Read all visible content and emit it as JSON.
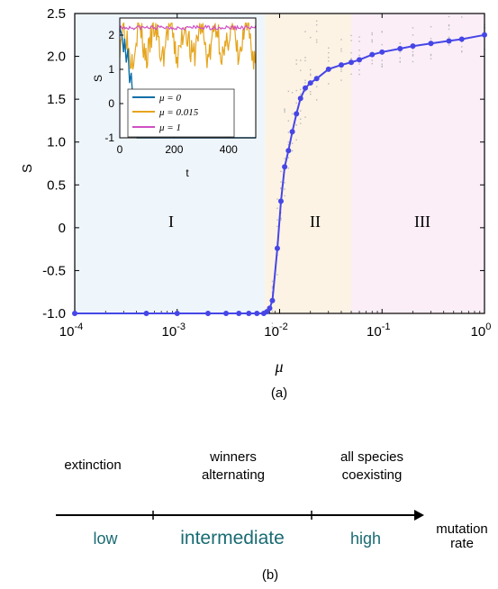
{
  "chart_data": [
    {
      "type": "line",
      "panel": "(a)",
      "xscale": "log",
      "xlim": [
        0.0001,
        1
      ],
      "ylim": [
        -1.0,
        2.5
      ],
      "xlabel": "μ",
      "ylabel": "S",
      "xticks": [
        "10^-4",
        "10^-3",
        "10^-2",
        "10^-1",
        "10^0"
      ],
      "yticks": [
        "-1.0",
        "-0.5",
        "0",
        "0.5",
        "1.0",
        "1.5",
        "2.0",
        "2.5"
      ],
      "regions": [
        {
          "label": "I",
          "from": 0.0001,
          "to": 0.0072,
          "color": "#eef5fb"
        },
        {
          "label": "II",
          "from": 0.0072,
          "to": 0.05,
          "color": "#fdf3e4"
        },
        {
          "label": "III",
          "from": 0.05,
          "to": 1,
          "color": "#fbeef7"
        }
      ],
      "series": [
        {
          "color": "#4646e6",
          "points": [
            [
              0.0001,
              -1.0
            ],
            [
              0.0005,
              -1.0
            ],
            [
              0.001,
              -1.0
            ],
            [
              0.002,
              -1.0
            ],
            [
              0.003,
              -1.0
            ],
            [
              0.004,
              -1.0
            ],
            [
              0.005,
              -1.0
            ],
            [
              0.006,
              -1.0
            ],
            [
              0.007,
              -1.0
            ],
            [
              0.0075,
              -0.98
            ],
            [
              0.008,
              -0.94
            ],
            [
              0.0085,
              -0.85
            ],
            [
              0.0095,
              -0.24
            ],
            [
              0.0103,
              0.31
            ],
            [
              0.0112,
              0.71
            ],
            [
              0.0122,
              0.9
            ],
            [
              0.0133,
              1.12
            ],
            [
              0.0146,
              1.33
            ],
            [
              0.016,
              1.51
            ],
            [
              0.0178,
              1.63
            ],
            [
              0.02,
              1.69
            ],
            [
              0.023,
              1.74
            ],
            [
              0.03,
              1.85
            ],
            [
              0.04,
              1.9
            ],
            [
              0.05,
              1.93
            ],
            [
              0.06,
              1.96
            ],
            [
              0.08,
              2.02
            ],
            [
              0.1,
              2.05
            ],
            [
              0.15,
              2.09
            ],
            [
              0.2,
              2.12
            ],
            [
              0.3,
              2.15
            ],
            [
              0.45,
              2.18
            ],
            [
              0.6,
              2.2
            ],
            [
              1.0,
              2.25
            ]
          ]
        }
      ],
      "inset": {
        "type": "line",
        "xlabel": "t",
        "ylabel": "S",
        "xlim": [
          0,
          500
        ],
        "ylim": [
          -1,
          2.5
        ],
        "xticks": [
          "0",
          "200",
          "400"
        ],
        "yticks": [
          "-1",
          "0",
          "1",
          "2"
        ],
        "legend_position": "bottom-right",
        "series": [
          {
            "name": "μ = 0",
            "color": "#0e6fa8"
          },
          {
            "name": "μ = 0.015",
            "color": "#e5a51e"
          },
          {
            "name": "μ = 1",
            "color": "#cf4fc3"
          }
        ]
      }
    },
    {
      "type": "diagram",
      "panel": "(b)",
      "axis_label": "mutation rate",
      "segments": [
        {
          "rate": "low",
          "regime": "extinction"
        },
        {
          "rate": "intermediate",
          "regime": "winners alternating"
        },
        {
          "rate": "high",
          "regime": "all species coexisting"
        }
      ]
    }
  ],
  "text": {
    "panel_a_caption": "(a)",
    "panel_b_caption": "(b)",
    "x_axis_label": "μ",
    "y_axis_label": "S",
    "inset_x_label": "t",
    "inset_y_label": "S",
    "region_1": "I",
    "region_2": "II",
    "region_3": "III",
    "legend_1": "μ = 0",
    "legend_2": "μ = 0.015",
    "legend_3": "μ = 1",
    "regime_low_line1": "extinction",
    "regime_mid_line1": "winners",
    "regime_mid_line2": "alternating",
    "regime_high_line1": "all species",
    "regime_high_line2": "coexisting",
    "rate_low": "low",
    "rate_mid": "intermediate",
    "rate_high": "high",
    "axis_b_line1": "mutation",
    "axis_b_line2": "rate"
  }
}
